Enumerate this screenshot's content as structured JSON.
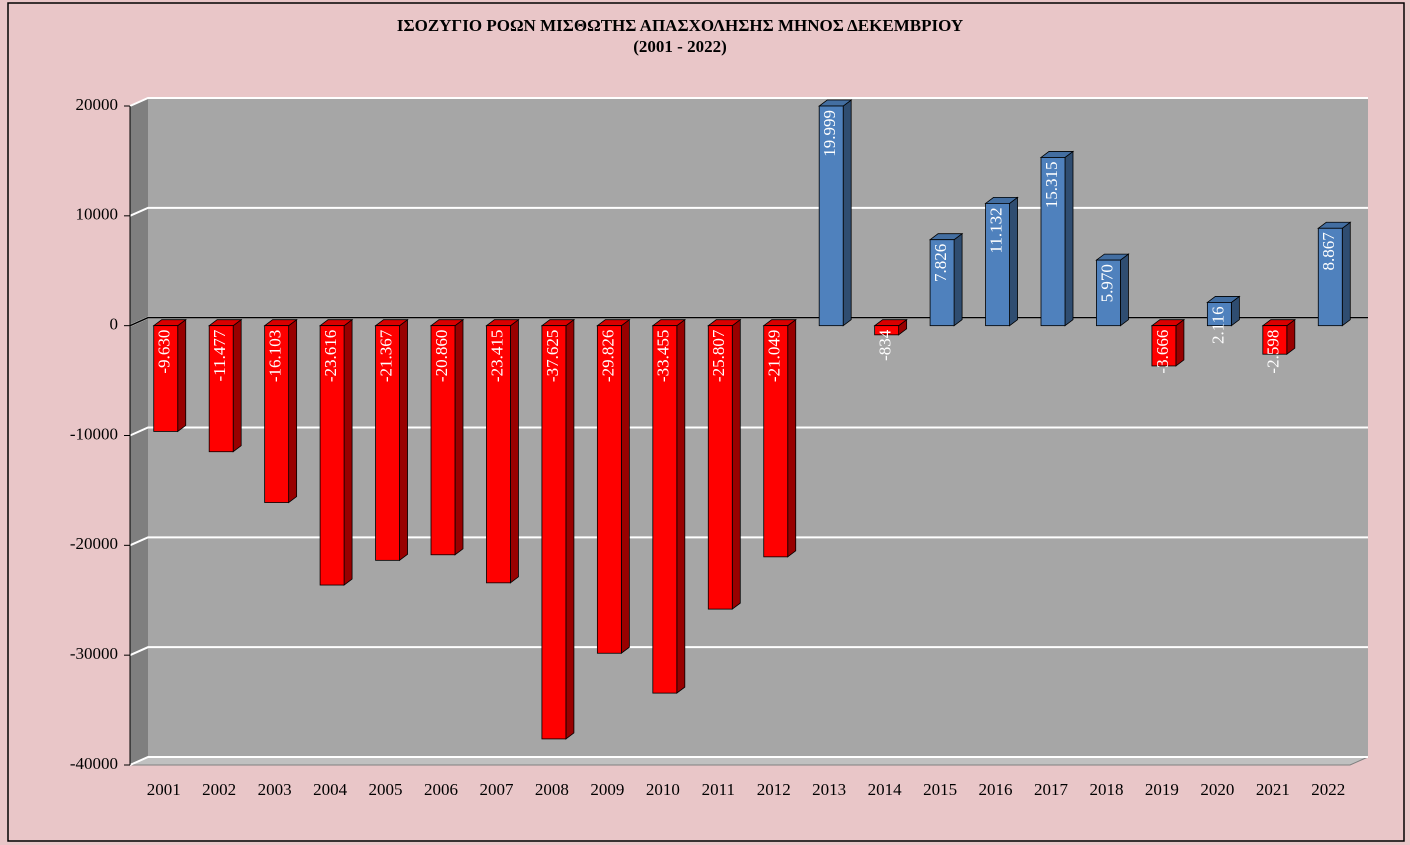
{
  "chart_data": {
    "type": "bar3d",
    "title": "ΙΣΟΖΥΓΙΟ ΡΟΩΝ ΜΙΣΘΩΤΗΣ ΑΠΑΣΧΟΛΗΣΗΣ ΜΗΝΟΣ  ΔΕΚΕΜΒΡΙΟΥ",
    "subtitle": "(2001 - 2022)",
    "categories": [
      "2001",
      "2002",
      "2003",
      "2004",
      "2005",
      "2006",
      "2007",
      "2008",
      "2009",
      "2010",
      "2011",
      "2012",
      "2013",
      "2014",
      "2015",
      "2016",
      "2017",
      "2018",
      "2019",
      "2020",
      "2021",
      "2022"
    ],
    "values": [
      -9630,
      -11477,
      -16103,
      -23616,
      -21367,
      -20860,
      -23415,
      -37625,
      -29826,
      -33455,
      -25807,
      -21049,
      19999,
      -834,
      7826,
      11132,
      15315,
      5970,
      -3666,
      2116,
      -2598,
      8867
    ],
    "value_labels": [
      "-9.630",
      "-11.477",
      "-16.103",
      "-23.616",
      "-21.367",
      "-20.860",
      "-23.415",
      "-37.625",
      "-29.826",
      "-33.455",
      "-25.807",
      "-21.049",
      "19.999",
      "-834",
      "7.826",
      "11.132",
      "15.315",
      "5.970",
      "-3.666",
      "2.116",
      "-2.598",
      "8.867"
    ],
    "positive_color": "#4f81bd",
    "negative_color": "#ff0000",
    "ylim": [
      -40000,
      20000
    ],
    "yticks": [
      20000,
      10000,
      0,
      -10000,
      -20000,
      -30000,
      -40000
    ],
    "grid": true
  }
}
